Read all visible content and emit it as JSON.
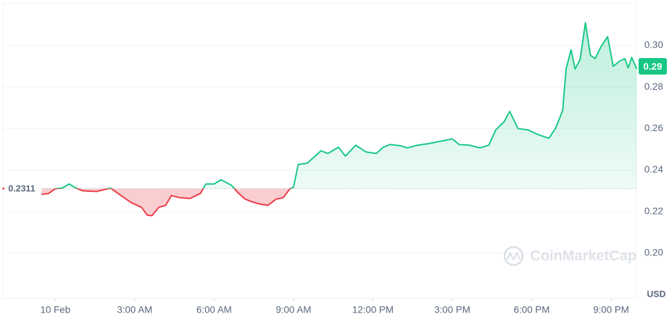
{
  "chart_data": {
    "type": "line",
    "x": [
      -0.52,
      -0.26,
      0,
      0.26,
      0.52,
      0.78,
      1.04,
      1.57,
      2.09,
      2.48,
      2.87,
      3.26,
      3.47,
      3.65,
      3.91,
      4.17,
      4.38,
      4.7,
      5.09,
      5.48,
      5.69,
      6.0,
      6.26,
      6.65,
      6.91,
      7.17,
      7.43,
      7.7,
      8.03,
      8.35,
      8.61,
      8.87,
      9.0,
      9.18,
      9.52,
      9.78,
      10.04,
      10.3,
      10.7,
      10.96,
      11.35,
      11.74,
      12.13,
      12.39,
      12.65,
      13.04,
      13.3,
      13.7,
      14.09,
      14.48,
      15.0,
      15.26,
      15.65,
      16.04,
      16.38,
      16.64,
      16.96,
      17.17,
      17.48,
      17.87,
      18.26,
      18.65,
      18.91,
      19.17,
      19.3,
      19.49,
      19.64,
      19.83,
      20.03,
      20.22,
      20.4,
      20.61,
      20.87,
      21.08,
      21.34,
      21.52,
      21.65,
      21.78,
      21.97
    ],
    "values": [
      0.2283,
      0.2287,
      0.231,
      0.2313,
      0.2333,
      0.2313,
      0.23,
      0.2297,
      0.2313,
      0.2277,
      0.2243,
      0.222,
      0.2183,
      0.218,
      0.222,
      0.223,
      0.2277,
      0.2267,
      0.2263,
      0.2287,
      0.2333,
      0.2333,
      0.2353,
      0.2327,
      0.229,
      0.226,
      0.2247,
      0.2237,
      0.223,
      0.226,
      0.2267,
      0.231,
      0.2317,
      0.2427,
      0.2433,
      0.2463,
      0.2493,
      0.248,
      0.251,
      0.2467,
      0.252,
      0.2487,
      0.248,
      0.251,
      0.2523,
      0.2517,
      0.2507,
      0.252,
      0.2527,
      0.2537,
      0.255,
      0.2523,
      0.252,
      0.2507,
      0.252,
      0.2593,
      0.2633,
      0.2683,
      0.26,
      0.2593,
      0.257,
      0.2553,
      0.2603,
      0.2687,
      0.2887,
      0.298,
      0.2887,
      0.2933,
      0.311,
      0.2953,
      0.2937,
      0.2993,
      0.3043,
      0.29,
      0.2927,
      0.2937,
      0.2893,
      0.2943,
      0.2887
    ],
    "baseline": 0.2311,
    "last_price": 0.29,
    "up_color": "#16c784",
    "down_color": "#ea3943",
    "xlim": [
      -1.96,
      21.96
    ],
    "xticks": [
      {
        "value": 0,
        "label": "10 Feb"
      },
      {
        "value": 3,
        "label": "3:00 AM"
      },
      {
        "value": 6,
        "label": "6:00 AM"
      },
      {
        "value": 9,
        "label": "9:00 AM"
      },
      {
        "value": 12,
        "label": "12:00 PM"
      },
      {
        "value": 15,
        "label": "3:00 PM"
      },
      {
        "value": 18,
        "label": "6:00 PM"
      },
      {
        "value": 21,
        "label": "9:00 PM"
      }
    ],
    "ylim": [
      0.1783,
      0.3203
    ],
    "yticks": [
      {
        "value": 0.2,
        "label": "0.20"
      },
      0.22,
      0.24,
      0.26,
      0.28,
      {
        "value": 0.3,
        "label": "0.30"
      }
    ],
    "y_unit": "USD",
    "watermark": "CoinMarketCap",
    "grid": true
  }
}
